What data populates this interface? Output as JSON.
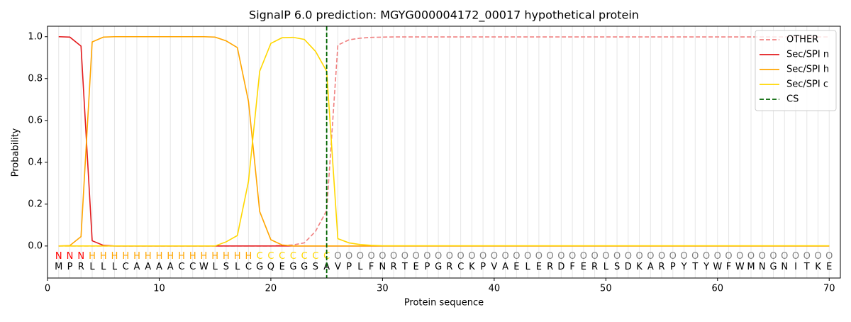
{
  "chart_data": {
    "type": "line",
    "title": "SignalP 6.0 prediction: MGYG000004172_00017 hypothetical protein",
    "x_label": "Protein sequence",
    "y_label": "Probability",
    "x": [
      1,
      2,
      3,
      4,
      5,
      6,
      7,
      8,
      9,
      10,
      11,
      12,
      13,
      14,
      15,
      16,
      17,
      18,
      19,
      20,
      21,
      22,
      23,
      24,
      25,
      26,
      27,
      28,
      29,
      30,
      31,
      32,
      33,
      34,
      35,
      36,
      37,
      38,
      39,
      40,
      41,
      42,
      43,
      44,
      45,
      46,
      47,
      48,
      49,
      50,
      51,
      52,
      53,
      54,
      55,
      56,
      57,
      58,
      59,
      60,
      61,
      62,
      63,
      64,
      65,
      66,
      67,
      68,
      69,
      70
    ],
    "residues": [
      "M",
      "P",
      "R",
      "L",
      "L",
      "L",
      "C",
      "A",
      "A",
      "A",
      "A",
      "C",
      "C",
      "W",
      "L",
      "S",
      "L",
      "C",
      "G",
      "Q",
      "E",
      "G",
      "G",
      "S",
      "A",
      "V",
      "P",
      "L",
      "F",
      "N",
      "R",
      "T",
      "E",
      "P",
      "G",
      "R",
      "C",
      "K",
      "P",
      "V",
      "A",
      "E",
      "L",
      "E",
      "R",
      "D",
      "F",
      "E",
      "R",
      "L",
      "S",
      "D",
      "K",
      "A",
      "R",
      "P",
      "Y",
      "T",
      "Y",
      "W",
      "F",
      "W",
      "M",
      "N",
      "G",
      "N",
      "I",
      "T",
      "K",
      "E"
    ],
    "region_labels": [
      "N",
      "N",
      "N",
      "H",
      "H",
      "H",
      "H",
      "H",
      "H",
      "H",
      "H",
      "H",
      "H",
      "H",
      "H",
      "H",
      "H",
      "H",
      "C",
      "C",
      "C",
      "C",
      "C",
      "C",
      "C",
      "O",
      "O",
      "O",
      "O",
      "O",
      "O",
      "O",
      "O",
      "O",
      "O",
      "O",
      "O",
      "O",
      "O",
      "O",
      "O",
      "O",
      "O",
      "O",
      "O",
      "O",
      "O",
      "O",
      "O",
      "O",
      "O",
      "O",
      "O",
      "O",
      "O",
      "O",
      "O",
      "O",
      "O",
      "O",
      "O",
      "O",
      "O",
      "O",
      "O",
      "O",
      "O",
      "O",
      "O",
      "O"
    ],
    "region_colors": {
      "N": "#ff0000",
      "H": "#ffa500",
      "C": "#ffd700",
      "O": "#808080"
    },
    "series": [
      {
        "name": "OTHER",
        "color": "#f08080",
        "dash": true,
        "values": [
          0,
          0,
          0,
          0,
          0,
          0,
          0,
          0,
          0,
          0,
          0,
          0,
          0,
          0,
          0,
          0,
          0,
          0,
          0,
          0,
          0.003,
          0.005,
          0.015,
          0.07,
          0.17,
          0.96,
          0.985,
          0.993,
          0.997,
          0.998,
          0.999,
          0.999,
          0.999,
          0.999,
          0.999,
          0.999,
          0.999,
          0.999,
          0.999,
          0.999,
          0.999,
          0.999,
          0.999,
          0.999,
          0.999,
          0.999,
          0.999,
          0.999,
          0.999,
          0.999,
          0.999,
          0.999,
          0.999,
          0.999,
          0.999,
          0.999,
          0.999,
          0.999,
          0.999,
          0.999,
          0.999,
          0.999,
          0.999,
          0.999,
          0.999,
          0.999,
          0.999,
          0.999,
          0.999,
          0.999
        ]
      },
      {
        "name": "Sec/SPI n",
        "color": "#e31a1c",
        "values": [
          1.0,
          0.998,
          0.955,
          0.025,
          0.003,
          0,
          0,
          0,
          0,
          0,
          0,
          0,
          0,
          0,
          0,
          0,
          0,
          0,
          0,
          0,
          0,
          0,
          0,
          0,
          0,
          0,
          0,
          0,
          0,
          0,
          0,
          0,
          0,
          0,
          0,
          0,
          0,
          0,
          0,
          0,
          0,
          0,
          0,
          0,
          0,
          0,
          0,
          0,
          0,
          0,
          0,
          0,
          0,
          0,
          0,
          0,
          0,
          0,
          0,
          0,
          0,
          0,
          0,
          0,
          0,
          0,
          0,
          0,
          0,
          0
        ]
      },
      {
        "name": "Sec/SPI h",
        "color": "#ffa500",
        "values": [
          0,
          0.002,
          0.045,
          0.975,
          0.998,
          1.0,
          1.0,
          1.0,
          1.0,
          1.0,
          1.0,
          1.0,
          1.0,
          1.0,
          0.998,
          0.98,
          0.948,
          0.69,
          0.165,
          0.03,
          0.005,
          0,
          0,
          0,
          0,
          0,
          0,
          0,
          0,
          0,
          0,
          0,
          0,
          0,
          0,
          0,
          0,
          0,
          0,
          0,
          0,
          0,
          0,
          0,
          0,
          0,
          0,
          0,
          0,
          0,
          0,
          0,
          0,
          0,
          0,
          0,
          0,
          0,
          0,
          0,
          0,
          0,
          0,
          0,
          0,
          0,
          0,
          0,
          0,
          0
        ]
      },
      {
        "name": "Sec/SPI c",
        "color": "#ffd700",
        "values": [
          0,
          0,
          0,
          0,
          0,
          0,
          0,
          0,
          0,
          0,
          0,
          0,
          0,
          0,
          0,
          0.02,
          0.05,
          0.31,
          0.835,
          0.968,
          0.995,
          0.997,
          0.987,
          0.93,
          0.835,
          0.035,
          0.015,
          0.007,
          0.003,
          0.001,
          0.001,
          0.001,
          0.001,
          0.001,
          0.001,
          0.001,
          0.001,
          0.001,
          0.001,
          0.001,
          0.001,
          0.001,
          0.001,
          0.001,
          0.001,
          0.001,
          0.001,
          0.001,
          0.001,
          0.001,
          0.001,
          0.001,
          0.001,
          0.001,
          0.001,
          0.001,
          0.001,
          0.001,
          0.001,
          0.001,
          0.001,
          0.001,
          0.001,
          0.001,
          0.001,
          0.001,
          0.001,
          0.001,
          0.001,
          0.001
        ]
      }
    ],
    "cs": {
      "name": "CS",
      "x": 25,
      "color": "#006400"
    },
    "xlim": [
      0,
      71
    ],
    "ylim": [
      -0.153,
      1.05
    ],
    "xticks": [
      0,
      10,
      20,
      30,
      40,
      50,
      60,
      70
    ],
    "yticks": [
      {
        "value": 0,
        "label": "0.0"
      },
      {
        "value": 0.2,
        "label": "0.2"
      },
      {
        "value": 0.4,
        "label": "0.4"
      },
      {
        "value": 0.6,
        "label": "0.6"
      },
      {
        "value": 0.8,
        "label": "0.8"
      },
      {
        "value": 1.0,
        "label": "1.0"
      }
    ],
    "grid": true,
    "legend": "upper right"
  }
}
